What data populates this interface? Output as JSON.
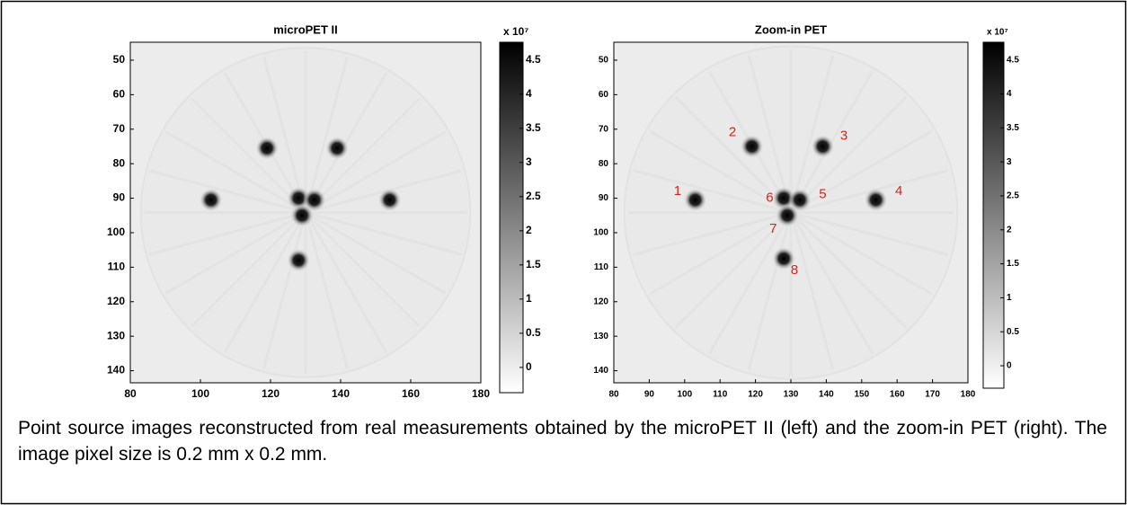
{
  "panels": [
    {
      "title": "microPET II",
      "xlim": [
        80,
        180
      ],
      "ylim": [
        44.8,
        143.5
      ],
      "xticks": [
        80,
        100,
        120,
        140,
        160,
        180
      ],
      "yticks": [
        50,
        60,
        70,
        80,
        90,
        100,
        110,
        120,
        130,
        140
      ],
      "colorbar": {
        "multiplier": "x 10⁷",
        "lim": [
          -0.37,
          4.76
        ],
        "ticks": [
          0,
          0.5,
          1,
          1.5,
          2,
          2.5,
          3,
          3.5,
          4,
          4.5
        ]
      },
      "sources": [
        {
          "x": 119,
          "y": 75.5
        },
        {
          "x": 139,
          "y": 75.5
        },
        {
          "x": 103,
          "y": 90.5
        },
        {
          "x": 154,
          "y": 90.5
        },
        {
          "x": 128,
          "y": 90
        },
        {
          "x": 132.5,
          "y": 90.5
        },
        {
          "x": 129,
          "y": 95
        },
        {
          "x": 128,
          "y": 108
        }
      ],
      "annotations": []
    },
    {
      "title": "Zoom-in PET",
      "xlim": [
        80,
        180
      ],
      "ylim": [
        44.8,
        143.5
      ],
      "xticks": [
        80,
        90,
        100,
        110,
        120,
        130,
        140,
        150,
        160,
        170,
        180
      ],
      "yticks": [
        50,
        60,
        70,
        80,
        90,
        100,
        110,
        120,
        130,
        140
      ],
      "colorbar": {
        "multiplier": "x 10⁷",
        "lim": [
          -0.33,
          4.76
        ],
        "ticks": [
          0,
          0.5,
          1,
          1.5,
          2,
          2.5,
          3,
          3.5,
          4,
          4.5
        ]
      },
      "sources": [
        {
          "x": 119,
          "y": 75
        },
        {
          "x": 139,
          "y": 75
        },
        {
          "x": 103,
          "y": 90.5
        },
        {
          "x": 154,
          "y": 90.5
        },
        {
          "x": 128,
          "y": 90
        },
        {
          "x": 132.5,
          "y": 90.5
        },
        {
          "x": 129,
          "y": 95
        },
        {
          "x": 128,
          "y": 107.5
        }
      ],
      "annotations": [
        {
          "text": "1",
          "x": 98,
          "y": 88
        },
        {
          "text": "2",
          "x": 113.5,
          "y": 71
        },
        {
          "text": "3",
          "x": 145,
          "y": 72
        },
        {
          "text": "4",
          "x": 160.5,
          "y": 88
        },
        {
          "text": "5",
          "x": 139,
          "y": 89
        },
        {
          "text": "6",
          "x": 124,
          "y": 90
        },
        {
          "text": "7",
          "x": 125,
          "y": 99
        },
        {
          "text": "8",
          "x": 131,
          "y": 111
        }
      ]
    }
  ],
  "caption": "Point source images reconstructed from real measurements obtained by the microPET II (left) and the zoom-in PET (right). The image pixel size is 0.2 mm x 0.2 mm."
}
